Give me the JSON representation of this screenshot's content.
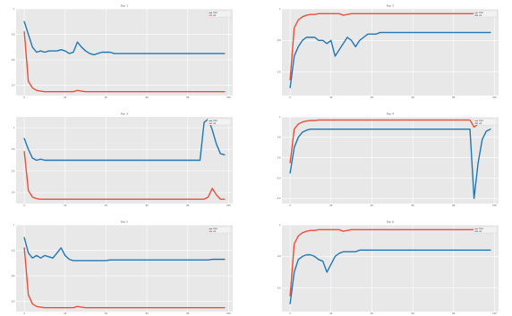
{
  "chart_data": [
    {
      "type": "line",
      "title": "Run 1",
      "x": [
        0,
        2,
        4,
        6,
        8,
        10,
        12,
        14,
        16,
        18,
        20,
        22,
        24,
        26,
        28,
        30,
        32,
        34,
        36,
        38,
        40,
        42,
        44,
        46,
        48,
        50,
        52,
        54,
        56,
        58,
        60,
        62,
        64,
        66,
        68,
        70,
        72,
        74,
        76,
        78,
        80,
        82,
        84,
        86,
        88,
        90,
        92,
        94,
        96,
        98
      ],
      "series": [
        {
          "name": "train",
          "color": "#1f77b4",
          "values": [
            0.9,
            0.8,
            0.7,
            0.66,
            0.67,
            0.66,
            0.67,
            0.67,
            0.67,
            0.68,
            0.67,
            0.65,
            0.66,
            0.74,
            0.7,
            0.67,
            0.65,
            0.64,
            0.65,
            0.66,
            0.66,
            0.66,
            0.65,
            0.65,
            0.65,
            0.65,
            0.65,
            0.65,
            0.65,
            0.65,
            0.65,
            0.65,
            0.65,
            0.65,
            0.65,
            0.65,
            0.65,
            0.65,
            0.65,
            0.65,
            0.65,
            0.65,
            0.65,
            0.65,
            0.65,
            0.65,
            0.65,
            0.65,
            0.65,
            0.65
          ]
        },
        {
          "name": "val",
          "color": "#e8503a",
          "values": [
            0.82,
            0.43,
            0.38,
            0.36,
            0.355,
            0.35,
            0.35,
            0.35,
            0.35,
            0.35,
            0.35,
            0.35,
            0.35,
            0.36,
            0.355,
            0.35,
            0.35,
            0.35,
            0.35,
            0.35,
            0.35,
            0.35,
            0.35,
            0.35,
            0.35,
            0.35,
            0.35,
            0.35,
            0.35,
            0.35,
            0.35,
            0.35,
            0.35,
            0.35,
            0.35,
            0.35,
            0.35,
            0.35,
            0.35,
            0.35,
            0.35,
            0.35,
            0.35,
            0.35,
            0.35,
            0.35,
            0.35,
            0.35,
            0.35,
            0.35
          ]
        }
      ],
      "ylim": [
        0.32,
        1.0
      ],
      "xlim": [
        -4,
        102
      ],
      "legend": "top-right",
      "grid": true
    },
    {
      "type": "line",
      "title": "Run 2",
      "x": [
        0,
        2,
        4,
        6,
        8,
        10,
        12,
        14,
        16,
        18,
        20,
        22,
        24,
        26,
        28,
        30,
        32,
        34,
        36,
        38,
        40,
        42,
        44,
        46,
        48,
        50,
        52,
        54,
        56,
        58,
        60,
        62,
        64,
        66,
        68,
        70,
        72,
        74,
        76,
        78,
        80,
        82,
        84,
        86,
        88,
        90,
        92,
        94,
        96,
        98
      ],
      "series": [
        {
          "name": "train",
          "color": "#e8503a",
          "values": [
            0.55,
            0.88,
            0.93,
            0.95,
            0.96,
            0.965,
            0.965,
            0.97,
            0.97,
            0.97,
            0.97,
            0.97,
            0.97,
            0.96,
            0.965,
            0.97,
            0.97,
            0.97,
            0.97,
            0.97,
            0.97,
            0.97,
            0.97,
            0.97,
            0.97,
            0.97,
            0.97,
            0.97,
            0.97,
            0.97,
            0.97,
            0.97,
            0.97,
            0.97,
            0.97,
            0.97,
            0.97,
            0.97,
            0.97,
            0.97,
            0.97,
            0.97,
            0.97,
            0.97,
            0.97,
            0.97,
            0.97,
            0.97,
            0.97,
            0.97
          ]
        },
        {
          "name": "val",
          "color": "#1f77b4",
          "values": [
            0.5,
            0.7,
            0.76,
            0.8,
            0.82,
            0.82,
            0.82,
            0.8,
            0.8,
            0.78,
            0.8,
            0.7,
            0.74,
            0.78,
            0.82,
            0.8,
            0.76,
            0.8,
            0.82,
            0.84,
            0.84,
            0.84,
            0.85,
            0.85,
            0.85,
            0.85,
            0.85,
            0.85,
            0.85,
            0.85,
            0.85,
            0.85,
            0.85,
            0.85,
            0.85,
            0.85,
            0.85,
            0.85,
            0.85,
            0.85,
            0.85,
            0.85,
            0.85,
            0.85,
            0.85,
            0.85,
            0.85,
            0.85,
            0.85,
            0.85
          ]
        }
      ],
      "ylim": [
        0.45,
        1.0
      ],
      "xlim": [
        -4,
        102
      ],
      "legend": "top-right",
      "grid": true
    },
    {
      "type": "line",
      "title": "Run 3",
      "x": [
        0,
        2,
        4,
        6,
        8,
        10,
        12,
        14,
        16,
        18,
        20,
        22,
        24,
        26,
        28,
        30,
        32,
        34,
        36,
        38,
        40,
        42,
        44,
        46,
        48,
        50,
        52,
        54,
        56,
        58,
        60,
        62,
        64,
        66,
        68,
        70,
        72,
        74,
        76,
        78,
        80,
        82,
        84,
        86,
        88,
        90,
        92,
        94,
        96,
        98
      ],
      "series": [
        {
          "name": "train",
          "color": "#1f77b4",
          "values": [
            0.9,
            0.8,
            0.72,
            0.7,
            0.71,
            0.7,
            0.7,
            0.7,
            0.7,
            0.7,
            0.7,
            0.7,
            0.7,
            0.7,
            0.7,
            0.7,
            0.7,
            0.7,
            0.7,
            0.7,
            0.7,
            0.7,
            0.7,
            0.7,
            0.7,
            0.7,
            0.7,
            0.7,
            0.7,
            0.7,
            0.7,
            0.7,
            0.7,
            0.7,
            0.7,
            0.7,
            0.7,
            0.7,
            0.7,
            0.7,
            0.7,
            0.7,
            0.7,
            0.7,
            1.05,
            1.08,
            0.98,
            0.85,
            0.76,
            0.75
          ]
        },
        {
          "name": "val",
          "color": "#e8503a",
          "values": [
            0.78,
            0.42,
            0.36,
            0.345,
            0.34,
            0.34,
            0.34,
            0.34,
            0.34,
            0.34,
            0.34,
            0.34,
            0.34,
            0.34,
            0.34,
            0.34,
            0.34,
            0.34,
            0.34,
            0.34,
            0.34,
            0.34,
            0.34,
            0.34,
            0.34,
            0.34,
            0.34,
            0.34,
            0.34,
            0.34,
            0.34,
            0.34,
            0.34,
            0.34,
            0.34,
            0.34,
            0.34,
            0.34,
            0.34,
            0.34,
            0.34,
            0.34,
            0.34,
            0.34,
            0.34,
            0.36,
            0.44,
            0.38,
            0.34,
            0.34
          ]
        }
      ],
      "ylim": [
        0.3,
        1.1
      ],
      "xlim": [
        -4,
        102
      ],
      "legend": "top-right",
      "grid": true
    },
    {
      "type": "line",
      "title": "Run 4",
      "x": [
        0,
        2,
        4,
        6,
        8,
        10,
        12,
        14,
        16,
        18,
        20,
        22,
        24,
        26,
        28,
        30,
        32,
        34,
        36,
        38,
        40,
        42,
        44,
        46,
        48,
        50,
        52,
        54,
        56,
        58,
        60,
        62,
        64,
        66,
        68,
        70,
        72,
        74,
        76,
        78,
        80,
        82,
        84,
        86,
        88,
        90,
        92,
        94,
        96,
        98
      ],
      "series": [
        {
          "name": "train",
          "color": "#e8503a",
          "values": [
            0.55,
            0.88,
            0.93,
            0.95,
            0.96,
            0.965,
            0.965,
            0.97,
            0.97,
            0.97,
            0.97,
            0.97,
            0.97,
            0.97,
            0.97,
            0.97,
            0.97,
            0.97,
            0.97,
            0.97,
            0.97,
            0.97,
            0.97,
            0.97,
            0.97,
            0.97,
            0.97,
            0.97,
            0.97,
            0.97,
            0.97,
            0.97,
            0.97,
            0.97,
            0.97,
            0.97,
            0.97,
            0.97,
            0.97,
            0.97,
            0.97,
            0.97,
            0.97,
            0.97,
            0.97,
            0.9,
            0.93,
            0.95,
            0.96,
            0.965
          ]
        },
        {
          "name": "val",
          "color": "#1f77b4",
          "values": [
            0.45,
            0.7,
            0.8,
            0.85,
            0.87,
            0.88,
            0.88,
            0.88,
            0.88,
            0.88,
            0.88,
            0.88,
            0.88,
            0.88,
            0.88,
            0.88,
            0.88,
            0.88,
            0.88,
            0.88,
            0.88,
            0.88,
            0.88,
            0.88,
            0.88,
            0.88,
            0.88,
            0.88,
            0.88,
            0.88,
            0.88,
            0.88,
            0.88,
            0.88,
            0.88,
            0.88,
            0.88,
            0.88,
            0.88,
            0.88,
            0.88,
            0.88,
            0.88,
            0.88,
            0.88,
            0.2,
            0.55,
            0.78,
            0.86,
            0.88
          ]
        }
      ],
      "ylim": [
        0.15,
        1.0
      ],
      "xlim": [
        -4,
        102
      ],
      "legend": "top-right",
      "grid": true
    },
    {
      "type": "line",
      "title": "Run 5",
      "x": [
        0,
        2,
        4,
        6,
        8,
        10,
        12,
        14,
        16,
        18,
        20,
        22,
        24,
        26,
        28,
        30,
        32,
        34,
        36,
        38,
        40,
        42,
        44,
        46,
        48,
        50,
        52,
        54,
        56,
        58,
        60,
        62,
        64,
        66,
        68,
        70,
        72,
        74,
        76,
        78,
        80,
        82,
        84,
        86,
        88,
        90,
        92,
        94,
        96,
        98
      ],
      "series": [
        {
          "name": "train",
          "color": "#1f77b4",
          "values": [
            0.9,
            0.78,
            0.74,
            0.76,
            0.74,
            0.76,
            0.75,
            0.74,
            0.78,
            0.82,
            0.76,
            0.73,
            0.72,
            0.72,
            0.72,
            0.72,
            0.72,
            0.72,
            0.72,
            0.72,
            0.72,
            0.725,
            0.725,
            0.725,
            0.725,
            0.725,
            0.725,
            0.725,
            0.725,
            0.725,
            0.725,
            0.725,
            0.725,
            0.725,
            0.725,
            0.725,
            0.725,
            0.725,
            0.725,
            0.725,
            0.725,
            0.725,
            0.725,
            0.725,
            0.725,
            0.725,
            0.73,
            0.73,
            0.73,
            0.73
          ]
        },
        {
          "name": "val",
          "color": "#e8503a",
          "values": [
            0.82,
            0.45,
            0.38,
            0.36,
            0.355,
            0.35,
            0.35,
            0.35,
            0.35,
            0.35,
            0.35,
            0.35,
            0.35,
            0.36,
            0.355,
            0.35,
            0.35,
            0.35,
            0.35,
            0.35,
            0.35,
            0.35,
            0.35,
            0.35,
            0.35,
            0.35,
            0.35,
            0.35,
            0.35,
            0.35,
            0.35,
            0.35,
            0.35,
            0.35,
            0.35,
            0.35,
            0.35,
            0.35,
            0.35,
            0.35,
            0.35,
            0.35,
            0.35,
            0.35,
            0.35,
            0.35,
            0.35,
            0.35,
            0.35,
            0.35
          ]
        }
      ],
      "ylim": [
        0.32,
        1.0
      ],
      "xlim": [
        -4,
        102
      ],
      "legend": "top-right",
      "grid": true
    },
    {
      "type": "line",
      "title": "Run 6",
      "x": [
        0,
        2,
        4,
        6,
        8,
        10,
        12,
        14,
        16,
        18,
        20,
        22,
        24,
        26,
        28,
        30,
        32,
        34,
        36,
        38,
        40,
        42,
        44,
        46,
        48,
        50,
        52,
        54,
        56,
        58,
        60,
        62,
        64,
        66,
        68,
        70,
        72,
        74,
        76,
        78,
        80,
        82,
        84,
        86,
        88,
        90,
        92,
        94,
        96,
        98
      ],
      "series": [
        {
          "name": "train",
          "color": "#e8503a",
          "values": [
            0.55,
            0.88,
            0.93,
            0.95,
            0.96,
            0.965,
            0.965,
            0.97,
            0.97,
            0.97,
            0.97,
            0.97,
            0.97,
            0.96,
            0.965,
            0.97,
            0.97,
            0.97,
            0.97,
            0.97,
            0.97,
            0.97,
            0.97,
            0.97,
            0.97,
            0.97,
            0.97,
            0.97,
            0.97,
            0.97,
            0.97,
            0.97,
            0.97,
            0.97,
            0.97,
            0.97,
            0.97,
            0.97,
            0.97,
            0.97,
            0.97,
            0.97,
            0.97,
            0.97,
            0.97,
            0.97,
            0.97,
            0.97,
            0.97,
            0.97
          ]
        },
        {
          "name": "val",
          "color": "#1f77b4",
          "values": [
            0.5,
            0.7,
            0.78,
            0.8,
            0.81,
            0.81,
            0.8,
            0.78,
            0.77,
            0.7,
            0.75,
            0.8,
            0.82,
            0.83,
            0.83,
            0.83,
            0.83,
            0.84,
            0.84,
            0.84,
            0.84,
            0.84,
            0.84,
            0.84,
            0.84,
            0.84,
            0.84,
            0.84,
            0.84,
            0.84,
            0.84,
            0.84,
            0.84,
            0.84,
            0.84,
            0.84,
            0.84,
            0.84,
            0.84,
            0.84,
            0.84,
            0.84,
            0.84,
            0.84,
            0.84,
            0.84,
            0.84,
            0.84,
            0.84,
            0.84
          ]
        }
      ],
      "ylim": [
        0.45,
        1.0
      ],
      "xlim": [
        -4,
        102
      ],
      "legend": "top-right",
      "grid": true
    }
  ]
}
